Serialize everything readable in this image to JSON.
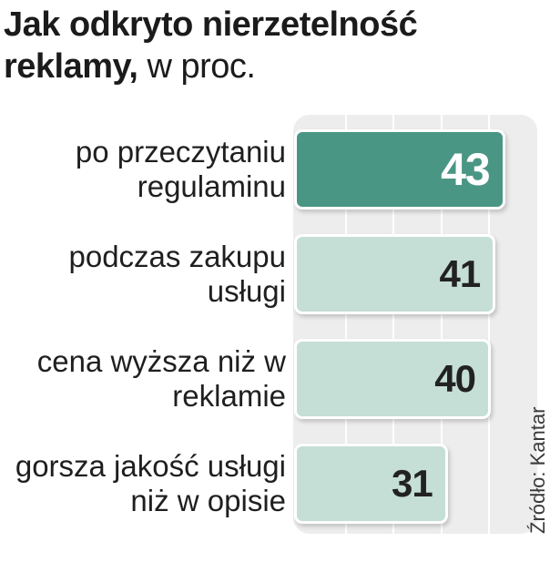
{
  "title": {
    "main": "Jak odkryto nierzetelność reklamy,",
    "unit": " w proc."
  },
  "source": "Źródło: Kantar",
  "colors": {
    "highlight_bar": "#4a9684",
    "bar": "#c5ded6",
    "highlight_text": "#ffffff",
    "text": "#222222",
    "plot_background": "#ededed"
  },
  "chart_data": {
    "type": "bar",
    "orientation": "horizontal",
    "categories": [
      "po przeczytaniu regulaminu",
      "podczas zakupu usługi",
      "cena wyższa niż w reklamie",
      "gorsza jakość usługi niż w opisie"
    ],
    "values": [
      43,
      41,
      40,
      31
    ],
    "highlight_index": 0,
    "title": "Jak odkryto nierzetelność reklamy, w proc.",
    "xlabel": "",
    "ylabel": "",
    "xlim": [
      0,
      50
    ],
    "grid": true,
    "data_labels": true
  }
}
